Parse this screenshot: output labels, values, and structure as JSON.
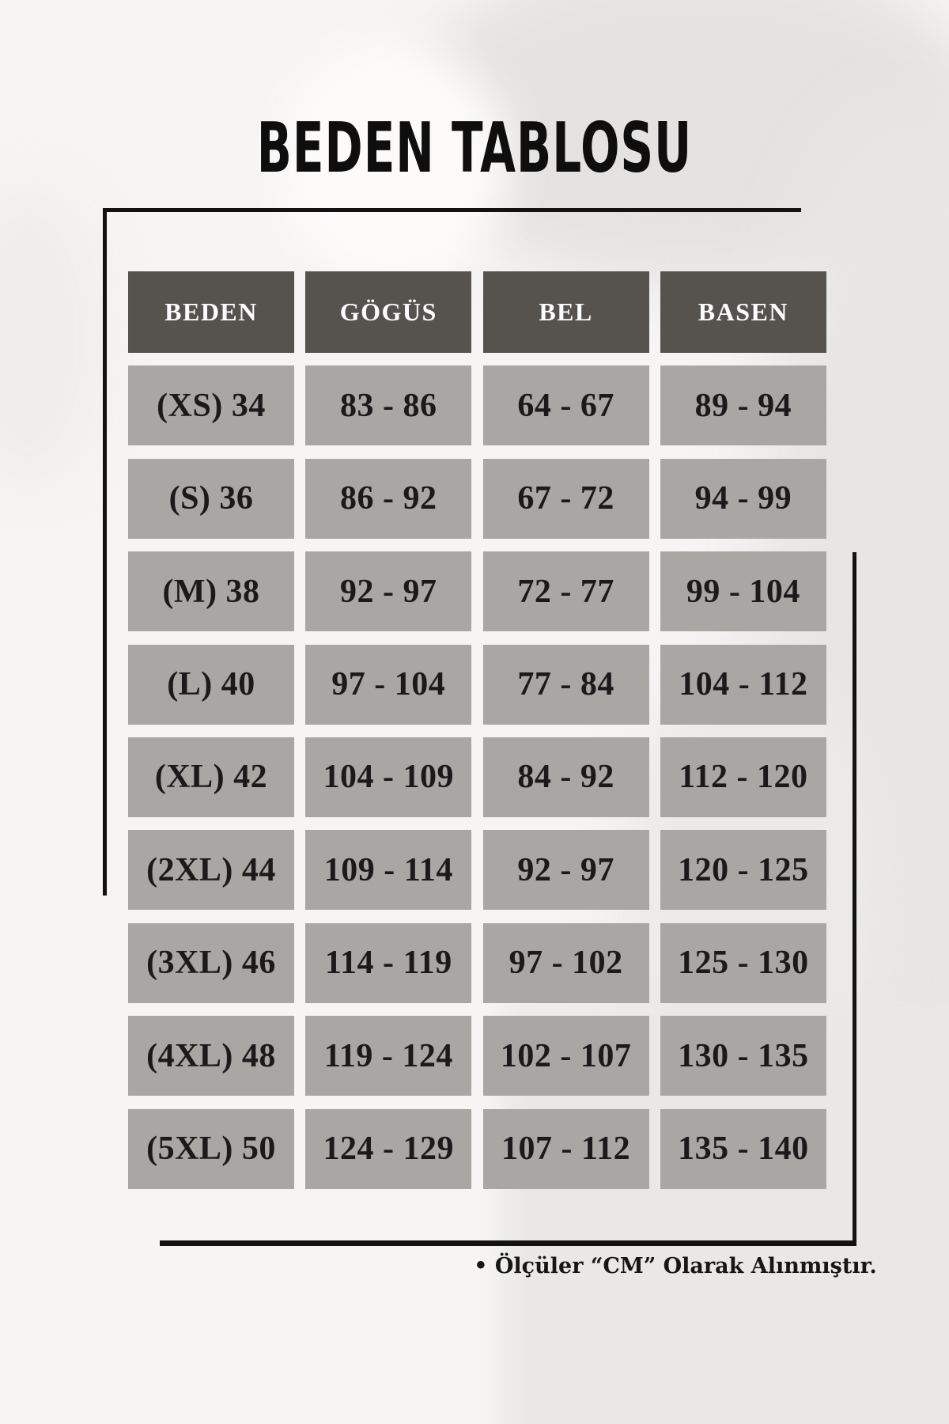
{
  "title": "BEDEN TABLOSU",
  "table": {
    "headers": [
      "BEDEN",
      "GÖGÜS",
      "BEL",
      "BASEN"
    ],
    "rows": [
      [
        "(XS) 34",
        "83 - 86",
        "64 - 67",
        "89 - 94"
      ],
      [
        "(S) 36",
        "86 - 92",
        "67 - 72",
        "94 - 99"
      ],
      [
        "(M) 38",
        "92 - 97",
        "72 - 77",
        "99 - 104"
      ],
      [
        "(L) 40",
        "97 - 104",
        "77 - 84",
        "104 - 112"
      ],
      [
        "(XL) 42",
        "104 - 109",
        "84 - 92",
        "112 - 120"
      ],
      [
        "(2XL) 44",
        "109 - 114",
        "92 - 97",
        "120 - 125"
      ],
      [
        "(3XL) 46",
        "114 - 119",
        "97 - 102",
        "125 - 130"
      ],
      [
        "(4XL) 48",
        "119 - 124",
        "102 - 107",
        "130 - 135"
      ],
      [
        "(5XL) 50",
        "124 - 129",
        "107 - 112",
        "135 - 140"
      ]
    ]
  },
  "footer": {
    "note": "• Ölçüler “CM” Olarak Alınmıştır."
  },
  "colors": {
    "page_background": "#f6f5f4",
    "header_cell_background": "#56524e",
    "header_cell_text": "#ffffff",
    "data_cell_background": "#a9a7a4",
    "data_cell_text": "#1a1a1a",
    "frame_line": "#121212"
  },
  "chart_data": {
    "type": "table",
    "title": "BEDEN TABLOSU",
    "columns": [
      "BEDEN",
      "GÖGÜS",
      "BEL",
      "BASEN"
    ],
    "rows": [
      [
        "(XS) 34",
        "83 - 86",
        "64 - 67",
        "89 - 94"
      ],
      [
        "(S) 36",
        "86 - 92",
        "67 - 72",
        "94 - 99"
      ],
      [
        "(M) 38",
        "92 - 97",
        "72 - 77",
        "99 - 104"
      ],
      [
        "(L) 40",
        "97 - 104",
        "77 - 84",
        "104 - 112"
      ],
      [
        "(XL) 42",
        "104 - 109",
        "84 - 92",
        "112 - 120"
      ],
      [
        "(2XL) 44",
        "109 - 114",
        "92 - 97",
        "120 - 125"
      ],
      [
        "(3XL) 46",
        "114 - 119",
        "97 - 102",
        "125 - 130"
      ],
      [
        "(4XL) 48",
        "119 - 124",
        "102 - 107",
        "130 - 135"
      ],
      [
        "(5XL) 50",
        "124 - 129",
        "107 - 112",
        "135 - 140"
      ]
    ],
    "note": "• Ölçüler “CM” Olarak Alınmıştır.",
    "units": "cm"
  }
}
